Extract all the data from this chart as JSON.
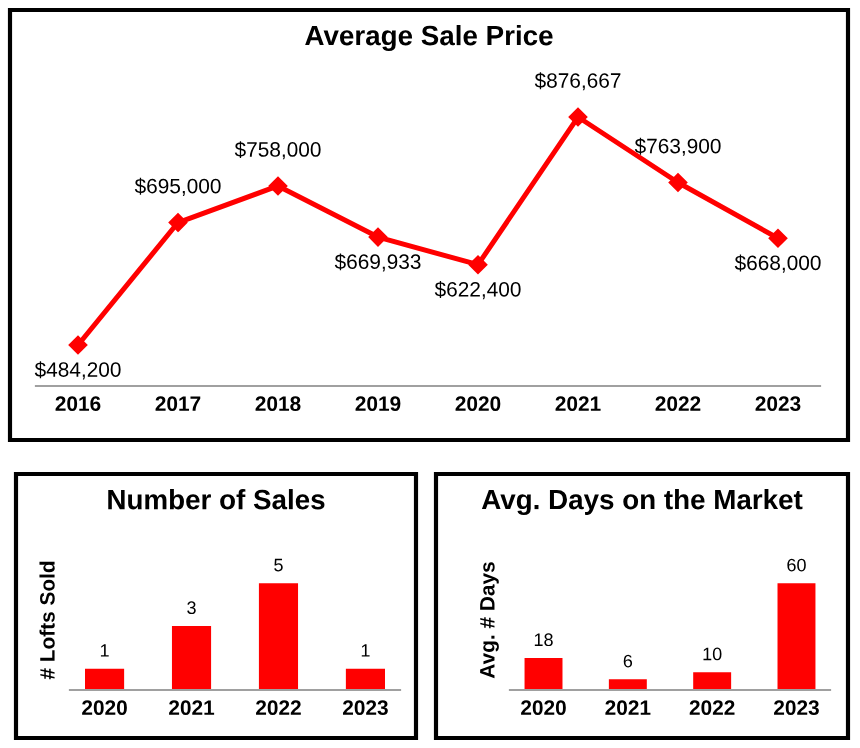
{
  "chart_data": [
    {
      "type": "line",
      "title": "Average Sale Price",
      "categories": [
        "2016",
        "2017",
        "2018",
        "2019",
        "2020",
        "2021",
        "2022",
        "2023"
      ],
      "series": [
        {
          "color": "#ff0000",
          "values": [
            484200,
            695000,
            758000,
            669933,
            622400,
            876667,
            763900,
            668000
          ],
          "value_labels": [
            "$484,200",
            "$695,000",
            "$758,000",
            "$669,933",
            "$622,400",
            "$876,667",
            "$763,900",
            "$668,000"
          ]
        }
      ],
      "marker": "diamond",
      "line_style": "solid",
      "tick_labels": "x",
      "grid": false,
      "legend": false
    },
    {
      "type": "bar",
      "title": "Number of Sales",
      "ylabel": "# Lofts Sold",
      "categories": [
        "2020",
        "2021",
        "2022",
        "2023"
      ],
      "series": [
        {
          "color": "#ff0000",
          "values": [
            1,
            3,
            5,
            1
          ]
        }
      ],
      "data_labels": true,
      "tick_labels": "x",
      "grid": false,
      "legend": false
    },
    {
      "type": "bar",
      "title": "Avg. Days on the Market",
      "ylabel": "Avg. # Days",
      "categories": [
        "2020",
        "2021",
        "2022",
        "2023"
      ],
      "series": [
        {
          "color": "#ff0000",
          "values": [
            18,
            6,
            10,
            60
          ]
        }
      ],
      "data_labels": true,
      "tick_labels": "x",
      "grid": false,
      "legend": false
    }
  ]
}
